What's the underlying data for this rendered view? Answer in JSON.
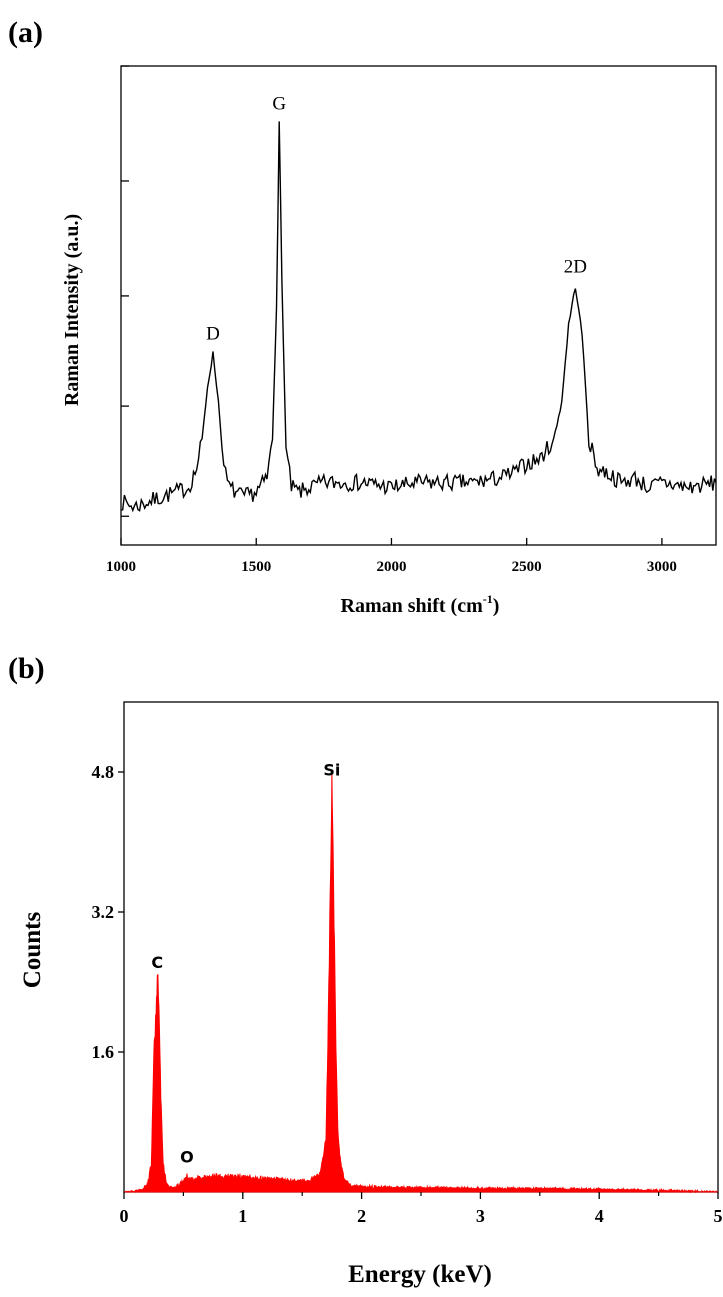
{
  "chart_data": [
    {
      "panel": "(a)",
      "type": "line",
      "xlabel": "Raman shift (cm",
      "xlabel_sup": "-1",
      "xlabel_close": ")",
      "ylabel": "Raman Intensity (a.u.)",
      "xlim": [
        1000,
        3200
      ],
      "ylim": [
        0,
        1
      ],
      "x_ticks": [
        1000,
        1500,
        2000,
        2500,
        3000
      ],
      "y_ticks_unlabeled": [
        0.06,
        0.29,
        0.52,
        0.76,
        1.0
      ],
      "grid": false,
      "legend": "none",
      "peaks": [
        {
          "label": "D",
          "x": 1340,
          "y": 0.4
        },
        {
          "label": "G",
          "x": 1585,
          "y": 0.88
        },
        {
          "label": "2D",
          "x": 2680,
          "y": 0.54
        }
      ],
      "series": [
        {
          "color": "#000000",
          "x": [
            1000,
            1050,
            1100,
            1150,
            1200,
            1250,
            1280,
            1300,
            1320,
            1340,
            1360,
            1380,
            1400,
            1450,
            1500,
            1540,
            1560,
            1575,
            1585,
            1595,
            1610,
            1630,
            1660,
            1700,
            1750,
            1800,
            1900,
            2000,
            2100,
            2200,
            2300,
            2400,
            2450,
            2500,
            2550,
            2600,
            2630,
            2655,
            2680,
            2705,
            2730,
            2760,
            2800,
            2850,
            2900,
            2950,
            3000,
            3100,
            3200
          ],
          "y": [
            0.09,
            0.08,
            0.09,
            0.1,
            0.11,
            0.12,
            0.16,
            0.22,
            0.33,
            0.4,
            0.3,
            0.16,
            0.12,
            0.1,
            0.11,
            0.14,
            0.22,
            0.5,
            0.88,
            0.55,
            0.2,
            0.12,
            0.11,
            0.12,
            0.13,
            0.13,
            0.13,
            0.12,
            0.13,
            0.13,
            0.13,
            0.14,
            0.15,
            0.17,
            0.18,
            0.22,
            0.3,
            0.46,
            0.54,
            0.44,
            0.22,
            0.16,
            0.15,
            0.13,
            0.14,
            0.12,
            0.13,
            0.12,
            0.13
          ]
        }
      ]
    },
    {
      "panel": "(b)",
      "type": "area",
      "xlabel": "Energy (keV)",
      "ylabel": "Counts",
      "xlim": [
        0,
        5
      ],
      "ylim": [
        0,
        5.6
      ],
      "x_ticks": [
        0,
        1,
        2,
        3,
        4,
        5
      ],
      "y_ticks": [
        1.6,
        3.2,
        4.8
      ],
      "grid": false,
      "legend": "none",
      "peaks": [
        {
          "label": "C",
          "x": 0.28,
          "y": 2.4
        },
        {
          "label": "O",
          "x": 0.53,
          "y": 0.18
        },
        {
          "label": "Si",
          "x": 1.75,
          "y": 4.6
        }
      ],
      "series": [
        {
          "color": "#ff0000",
          "x": [
            0,
            0.15,
            0.2,
            0.23,
            0.25,
            0.27,
            0.28,
            0.29,
            0.31,
            0.33,
            0.36,
            0.4,
            0.45,
            0.5,
            0.53,
            0.56,
            0.6,
            0.7,
            0.8,
            0.9,
            1.0,
            1.2,
            1.4,
            1.55,
            1.65,
            1.7,
            1.72,
            1.74,
            1.75,
            1.76,
            1.78,
            1.8,
            1.82,
            1.85,
            1.9,
            2.0,
            2.5,
            3.0,
            3.5,
            4.0,
            4.5,
            4.8,
            5.0
          ],
          "y": [
            0,
            0.02,
            0.1,
            0.3,
            1.5,
            2.1,
            2.4,
            2.3,
            1.1,
            0.3,
            0.08,
            0.05,
            0.07,
            0.12,
            0.18,
            0.14,
            0.15,
            0.17,
            0.18,
            0.18,
            0.17,
            0.15,
            0.13,
            0.12,
            0.2,
            0.6,
            2.0,
            3.8,
            4.6,
            3.9,
            2.0,
            0.7,
            0.35,
            0.15,
            0.08,
            0.06,
            0.05,
            0.04,
            0.04,
            0.03,
            0.02,
            0.01,
            0.0
          ]
        }
      ]
    }
  ]
}
